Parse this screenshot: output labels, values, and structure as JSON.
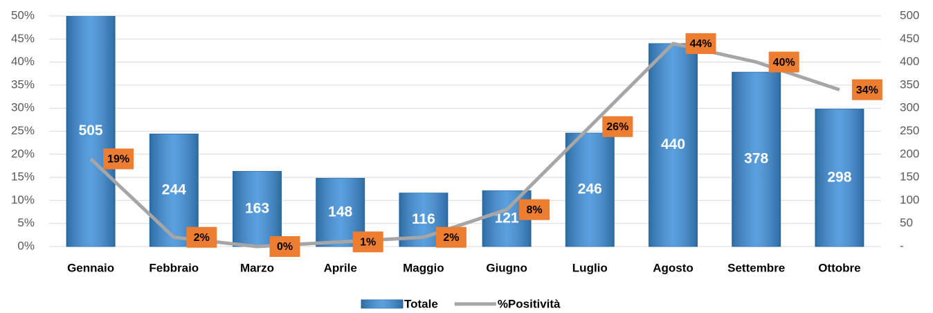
{
  "chart_data": {
    "type": "bar-line",
    "categories": [
      "Gennaio",
      "Febbraio",
      "Marzo",
      "Aprile",
      "Maggio",
      "Giugno",
      "Luglio",
      "Agosto",
      "Settembre",
      "Ottobre"
    ],
    "series": [
      {
        "name": "Totale",
        "type": "bar",
        "axis": "y2",
        "color": "#3d8fd9",
        "values": [
          505,
          244,
          163,
          148,
          116,
          121,
          246,
          440,
          378,
          298
        ]
      },
      {
        "name": "%Positività",
        "type": "line",
        "axis": "y",
        "color": "#a6a6a6",
        "values": [
          19,
          2,
          0,
          1,
          2,
          8,
          26,
          44,
          40,
          34
        ],
        "value_labels": [
          "19%",
          "2%",
          "0%",
          "1%",
          "2%",
          "8%",
          "26%",
          "44%",
          "40%",
          "34%"
        ],
        "label_color": "#ed7d31"
      }
    ],
    "ylim": [
      0,
      50
    ],
    "yticks": [
      {
        "value": 0,
        "label": "0%"
      },
      {
        "value": 5,
        "label": "5%"
      },
      {
        "value": 10,
        "label": "10%"
      },
      {
        "value": 15,
        "label": "15%"
      },
      {
        "value": 20,
        "label": "20%"
      },
      {
        "value": 25,
        "label": "25%"
      },
      {
        "value": 30,
        "label": "30%"
      },
      {
        "value": 35,
        "label": "35%"
      },
      {
        "value": 40,
        "label": "40%"
      },
      {
        "value": 45,
        "label": "45%"
      },
      {
        "value": 50,
        "label": "50%"
      }
    ],
    "y2lim": [
      0,
      500
    ],
    "y2ticks": [
      {
        "value": 0,
        "label": "-"
      },
      50,
      100,
      150,
      200,
      250,
      300,
      350,
      400,
      450,
      500
    ],
    "grid": true,
    "legend": "bottom"
  }
}
